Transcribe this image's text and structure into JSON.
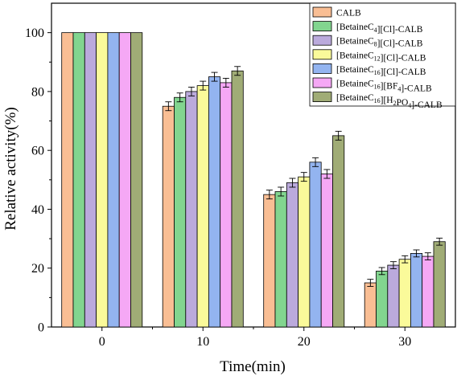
{
  "chart_data": {
    "type": "bar",
    "xlabel": "Time(min)",
    "ylabel": "Relative activity(%)",
    "categories": [
      "0",
      "10",
      "20",
      "30"
    ],
    "ylim": [
      0,
      110
    ],
    "yticks": [
      0,
      20,
      40,
      60,
      80,
      100
    ],
    "error_bars": true,
    "legend_placement": "top-right",
    "series": [
      {
        "name": "CALB",
        "color": "#f9be94",
        "values": [
          100,
          75,
          45,
          15
        ],
        "errors": [
          0,
          1.5,
          1.5,
          1.2
        ]
      },
      {
        "name": "[BetaineC4][Cl]-CALB",
        "color": "#82d58f",
        "values": [
          100,
          78,
          46,
          19
        ],
        "errors": [
          0,
          1.5,
          1.5,
          1.2
        ]
      },
      {
        "name": "[BetaineC8][Cl]-CALB",
        "color": "#bbaadc",
        "values": [
          100,
          80,
          49,
          21
        ],
        "errors": [
          0,
          1.5,
          1.5,
          1.2
        ]
      },
      {
        "name": "[BetaineC12][Cl]-CALB",
        "color": "#fafa9a",
        "values": [
          100,
          82,
          51,
          23
        ],
        "errors": [
          0,
          1.5,
          1.5,
          1.2
        ]
      },
      {
        "name": "[BetaineC16][Cl]-CALB",
        "color": "#93b4f0",
        "values": [
          100,
          85,
          56,
          25
        ],
        "errors": [
          0,
          1.5,
          1.5,
          1.2
        ]
      },
      {
        "name": "[BetaineC16][BF4]-CALB",
        "color": "#f5a8f5",
        "values": [
          100,
          83,
          52,
          24
        ],
        "errors": [
          0,
          1.5,
          1.5,
          1.2
        ]
      },
      {
        "name": "[BetaineC16][H2PO4]-CALB",
        "color": "#a0ac76",
        "values": [
          100,
          87,
          65,
          29
        ],
        "errors": [
          0,
          1.5,
          1.5,
          1.2
        ]
      }
    ]
  }
}
